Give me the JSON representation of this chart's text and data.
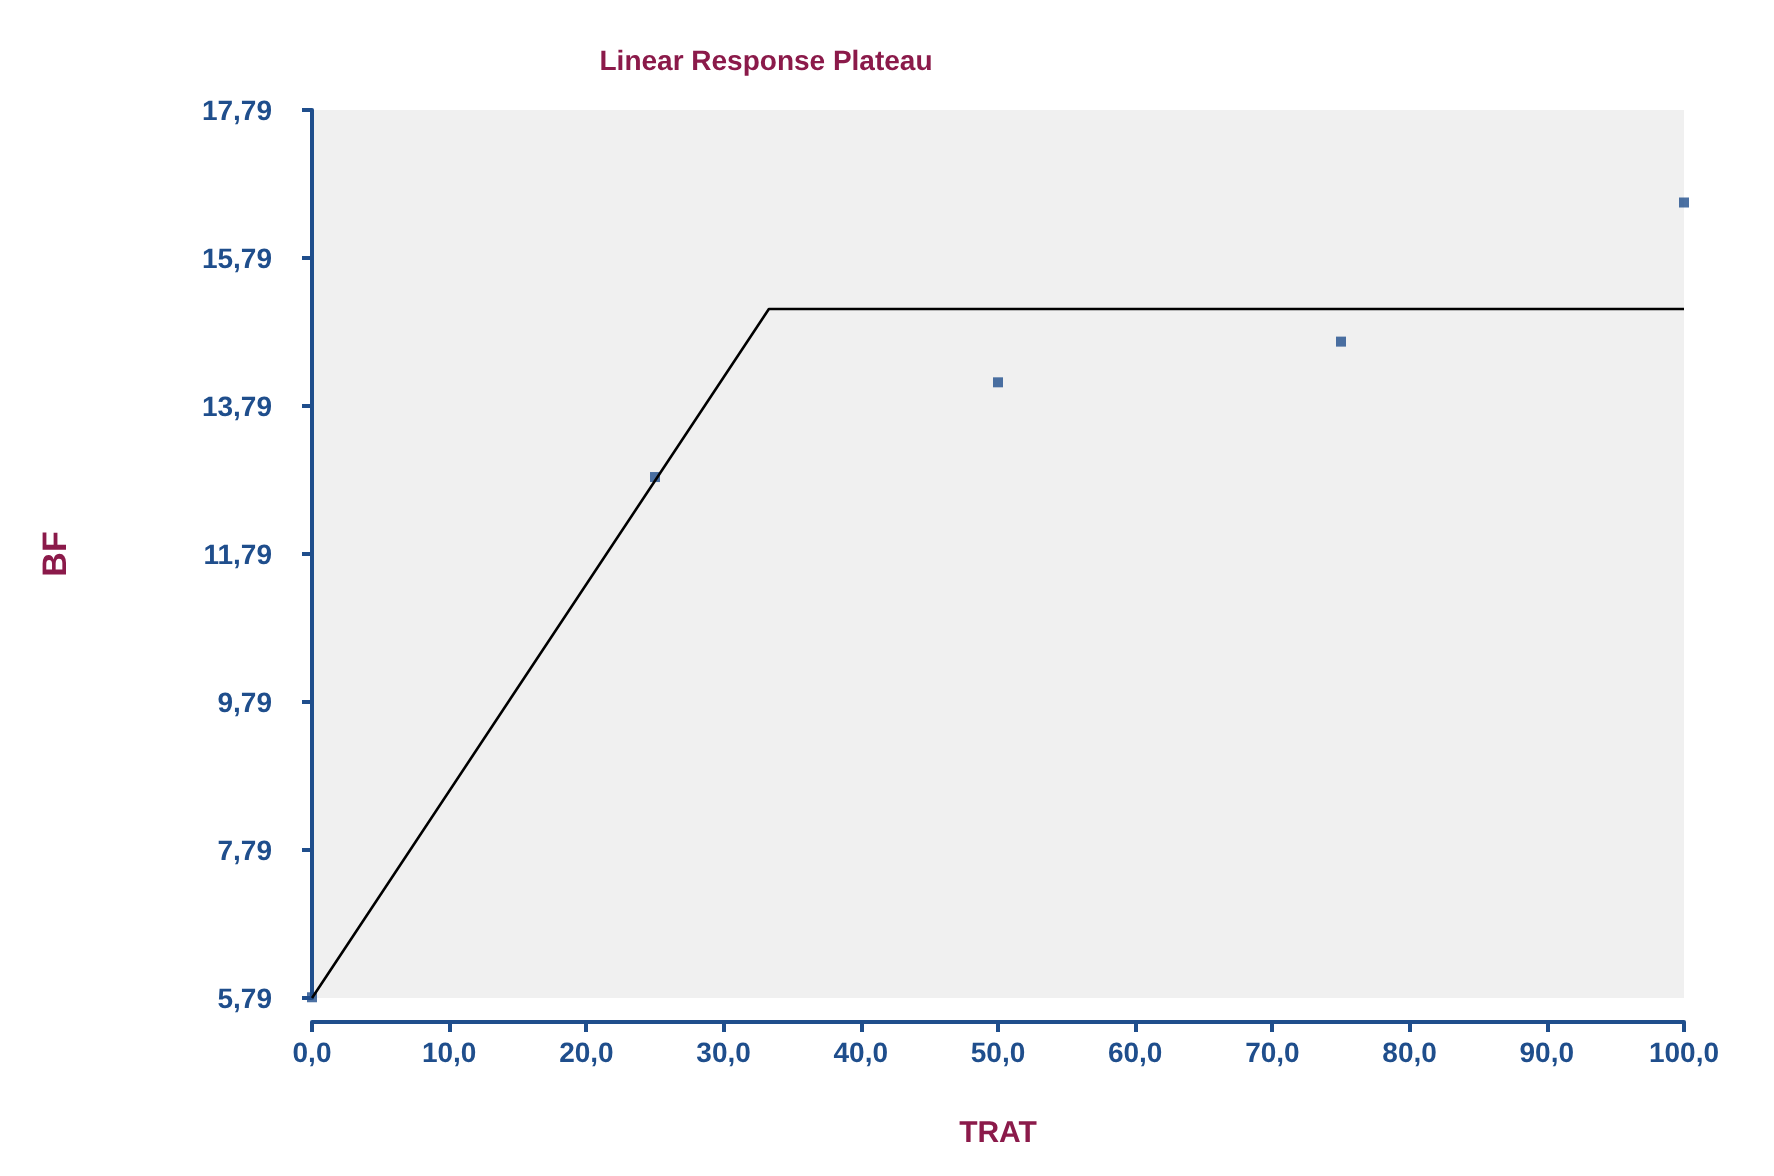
{
  "chart_data": {
    "title": "Linear Response Plateau",
    "xlabel": "TRAT",
    "ylabel": "BF",
    "xlim": [
      0,
      100
    ],
    "ylim": [
      5.79,
      17.79
    ],
    "xticks": [
      {
        "value": 0,
        "label": "0,0"
      },
      {
        "value": 10,
        "label": "10,0"
      },
      {
        "value": 20,
        "label": "20,0"
      },
      {
        "value": 30,
        "label": "30,0"
      },
      {
        "value": 40,
        "label": "40,0"
      },
      {
        "value": 50,
        "label": "50,0"
      },
      {
        "value": 60,
        "label": "60,0"
      },
      {
        "value": 70,
        "label": "70,0"
      },
      {
        "value": 80,
        "label": "80,0"
      },
      {
        "value": 90,
        "label": "90,0"
      },
      {
        "value": 100,
        "label": "100,0"
      }
    ],
    "yticks": [
      {
        "value": 5.79,
        "label": "5,79"
      },
      {
        "value": 7.79,
        "label": "7,79"
      },
      {
        "value": 9.79,
        "label": "9,79"
      },
      {
        "value": 11.79,
        "label": "11,79"
      },
      {
        "value": 13.79,
        "label": "13,79"
      },
      {
        "value": 15.79,
        "label": "15,79"
      },
      {
        "value": 17.79,
        "label": "17,79"
      }
    ],
    "grid": false,
    "type": "scatter",
    "series": [
      {
        "marker": "square",
        "color": "#1f4e8c",
        "x": [
          0,
          25,
          50,
          75,
          100
        ],
        "values": [
          5.8,
          12.83,
          14.11,
          14.66,
          16.54
        ]
      },
      {
        "type": "line",
        "color": "#000000",
        "x": [
          0,
          33.3,
          100
        ],
        "values": [
          5.79,
          15.1,
          15.1
        ],
        "marker": "none",
        "line_style": "solid"
      }
    ]
  }
}
